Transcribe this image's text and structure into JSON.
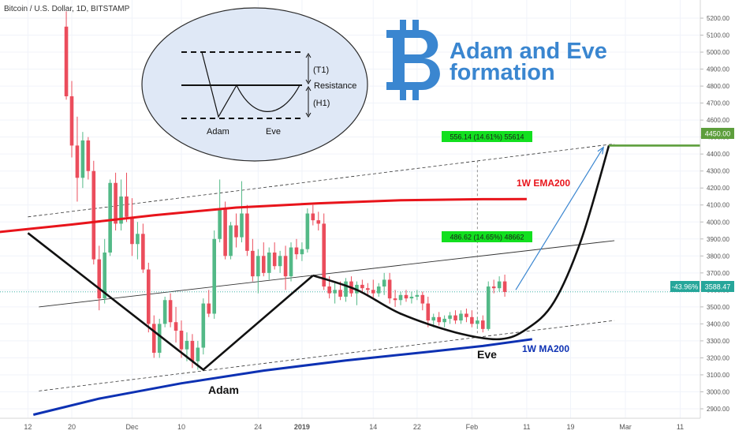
{
  "header": {
    "symbol_title": "Bitcoin / U.S. Dollar, 1D, BITSTAMP"
  },
  "overlay": {
    "title_line1": "Adam and Eve",
    "title_line2": "formation",
    "bitcoin_logo_glyph": "bitcoin-icon",
    "accent_color": "#3a86d0"
  },
  "inset": {
    "t1_label": "(T1)",
    "resistance_label": "Resistance",
    "h1_label": "(H1)",
    "adam_label": "Adam",
    "eve_label": "Eve",
    "fill_color": "#dfe8f6"
  },
  "annotations": {
    "adam_label": "Adam",
    "eve_label": "Eve",
    "ema_label": "1W EMA200",
    "ma_label": "1W MA200",
    "ema_color": "#e8141b",
    "ma_color": "#0d31b3",
    "measure_top": "556.14 (14.61%) 55614",
    "measure_mid": "486.62 (14.65%) 48662",
    "measure_color": "#12e01f"
  },
  "price_axis": {
    "last_change": "-43.96%",
    "last_price": "3588.47",
    "target_price": "4450.00",
    "target_color": "#5d9e3c"
  },
  "chart_data": {
    "type": "candlestick",
    "title": "Bitcoin / U.S. Dollar, 1D, BITSTAMP",
    "y_ticks": [
      2900,
      3000,
      3100,
      3200,
      3300,
      3400,
      3500,
      3600,
      3700,
      3800,
      3900,
      4000,
      4100,
      4200,
      4300,
      4400,
      4500,
      4600,
      4700,
      4800,
      4900,
      5000,
      5100,
      5200
    ],
    "y_tick_labels": [
      "2900.00",
      "3000.00",
      "3100.00",
      "3200.00",
      "3300.00",
      "3400.00",
      "3500.00",
      "3600.00",
      "3700.00",
      "3800.00",
      "3900.00",
      "4000.00",
      "4100.00",
      "4200.00",
      "4300.00",
      "4400.00",
      "4500.00",
      "4600.00",
      "4700.00",
      "4800.00",
      "4900.00",
      "5000.00",
      "5100.00",
      "5200.00"
    ],
    "ylim": [
      2860,
      5240
    ],
    "x_ticks": [
      {
        "day": 12,
        "label": "12"
      },
      {
        "day": 20,
        "label": "20"
      },
      {
        "day": 31,
        "label": "Dec"
      },
      {
        "day": 40,
        "label": "10"
      },
      {
        "day": 54,
        "label": "24"
      },
      {
        "day": 62,
        "label": "2019"
      },
      {
        "day": 75,
        "label": "14"
      },
      {
        "day": 83,
        "label": "22"
      },
      {
        "day": 93,
        "label": "Feb"
      },
      {
        "day": 103,
        "label": "11"
      },
      {
        "day": 111,
        "label": "19"
      },
      {
        "day": 121,
        "label": "Mar"
      },
      {
        "day": 131,
        "label": "11"
      }
    ],
    "xlim": [
      5,
      139
    ],
    "candles": [
      {
        "x": 19,
        "o": 5150,
        "h": 5240,
        "l": 4720,
        "c": 4740
      },
      {
        "x": 20,
        "o": 4740,
        "h": 4830,
        "l": 4380,
        "c": 4450
      },
      {
        "x": 21,
        "o": 4450,
        "h": 4620,
        "l": 4120,
        "c": 4260
      },
      {
        "x": 22,
        "o": 4260,
        "h": 4530,
        "l": 4200,
        "c": 4480
      },
      {
        "x": 23,
        "o": 4480,
        "h": 4500,
        "l": 4250,
        "c": 4300
      },
      {
        "x": 24,
        "o": 4300,
        "h": 4360,
        "l": 3750,
        "c": 3780
      },
      {
        "x": 25,
        "o": 3780,
        "h": 3860,
        "l": 3480,
        "c": 3550
      },
      {
        "x": 26,
        "o": 3550,
        "h": 3900,
        "l": 3520,
        "c": 3820
      },
      {
        "x": 27,
        "o": 3820,
        "h": 4250,
        "l": 3800,
        "c": 4230
      },
      {
        "x": 28,
        "o": 4230,
        "h": 4290,
        "l": 3950,
        "c": 3990
      },
      {
        "x": 29,
        "o": 3990,
        "h": 4250,
        "l": 3950,
        "c": 4150
      },
      {
        "x": 30,
        "o": 4150,
        "h": 4290,
        "l": 4000,
        "c": 4030
      },
      {
        "x": 31,
        "o": 4030,
        "h": 4140,
        "l": 3800,
        "c": 3870
      },
      {
        "x": 32,
        "o": 3870,
        "h": 4000,
        "l": 3780,
        "c": 3930
      },
      {
        "x": 33,
        "o": 3930,
        "h": 3990,
        "l": 3700,
        "c": 3720
      },
      {
        "x": 34,
        "o": 3720,
        "h": 3760,
        "l": 3350,
        "c": 3400
      },
      {
        "x": 35,
        "o": 3400,
        "h": 3450,
        "l": 3200,
        "c": 3230
      },
      {
        "x": 36,
        "o": 3230,
        "h": 3430,
        "l": 3200,
        "c": 3400
      },
      {
        "x": 37,
        "o": 3400,
        "h": 3560,
        "l": 3380,
        "c": 3540
      },
      {
        "x": 38,
        "o": 3540,
        "h": 3580,
        "l": 3380,
        "c": 3410
      },
      {
        "x": 39,
        "o": 3410,
        "h": 3500,
        "l": 3290,
        "c": 3360
      },
      {
        "x": 40,
        "o": 3360,
        "h": 3420,
        "l": 3200,
        "c": 3250
      },
      {
        "x": 41,
        "o": 3250,
        "h": 3350,
        "l": 3180,
        "c": 3300
      },
      {
        "x": 42,
        "o": 3300,
        "h": 3340,
        "l": 3140,
        "c": 3180
      },
      {
        "x": 43,
        "o": 3180,
        "h": 3300,
        "l": 3130,
        "c": 3260
      },
      {
        "x": 44,
        "o": 3260,
        "h": 3550,
        "l": 3220,
        "c": 3520
      },
      {
        "x": 45,
        "o": 3520,
        "h": 3600,
        "l": 3440,
        "c": 3460
      },
      {
        "x": 46,
        "o": 3460,
        "h": 3950,
        "l": 3430,
        "c": 3900
      },
      {
        "x": 47,
        "o": 3900,
        "h": 4250,
        "l": 3880,
        "c": 4080
      },
      {
        "x": 48,
        "o": 4080,
        "h": 4120,
        "l": 3780,
        "c": 3800
      },
      {
        "x": 49,
        "o": 3800,
        "h": 4000,
        "l": 3780,
        "c": 3980
      },
      {
        "x": 50,
        "o": 3980,
        "h": 4050,
        "l": 3850,
        "c": 3910
      },
      {
        "x": 51,
        "o": 3910,
        "h": 4240,
        "l": 3880,
        "c": 4050
      },
      {
        "x": 52,
        "o": 4050,
        "h": 4100,
        "l": 3800,
        "c": 3830
      },
      {
        "x": 53,
        "o": 3830,
        "h": 3900,
        "l": 3650,
        "c": 3680
      },
      {
        "x": 54,
        "o": 3680,
        "h": 3840,
        "l": 3580,
        "c": 3800
      },
      {
        "x": 55,
        "o": 3800,
        "h": 3880,
        "l": 3680,
        "c": 3700
      },
      {
        "x": 56,
        "o": 3700,
        "h": 3850,
        "l": 3660,
        "c": 3820
      },
      {
        "x": 57,
        "o": 3820,
        "h": 3880,
        "l": 3720,
        "c": 3740
      },
      {
        "x": 58,
        "o": 3740,
        "h": 3830,
        "l": 3700,
        "c": 3800
      },
      {
        "x": 59,
        "o": 3800,
        "h": 3860,
        "l": 3600,
        "c": 3680
      },
      {
        "x": 60,
        "o": 3680,
        "h": 3880,
        "l": 3650,
        "c": 3850
      },
      {
        "x": 61,
        "o": 3850,
        "h": 3900,
        "l": 3780,
        "c": 3810
      },
      {
        "x": 62,
        "o": 3810,
        "h": 3880,
        "l": 3770,
        "c": 3840
      },
      {
        "x": 63,
        "o": 3840,
        "h": 4080,
        "l": 3820,
        "c": 4050
      },
      {
        "x": 64,
        "o": 4050,
        "h": 4100,
        "l": 3980,
        "c": 4010
      },
      {
        "x": 65,
        "o": 4010,
        "h": 4060,
        "l": 3950,
        "c": 3990
      },
      {
        "x": 66,
        "o": 3990,
        "h": 4050,
        "l": 3600,
        "c": 3620
      },
      {
        "x": 67,
        "o": 3620,
        "h": 3680,
        "l": 3550,
        "c": 3580
      },
      {
        "x": 68,
        "o": 3580,
        "h": 3640,
        "l": 3520,
        "c": 3600
      },
      {
        "x": 69,
        "o": 3600,
        "h": 3650,
        "l": 3540,
        "c": 3560
      },
      {
        "x": 70,
        "o": 3560,
        "h": 3670,
        "l": 3530,
        "c": 3650
      },
      {
        "x": 71,
        "o": 3650,
        "h": 3680,
        "l": 3560,
        "c": 3580
      },
      {
        "x": 72,
        "o": 3580,
        "h": 3650,
        "l": 3510,
        "c": 3630
      },
      {
        "x": 73,
        "o": 3630,
        "h": 3660,
        "l": 3590,
        "c": 3610
      },
      {
        "x": 74,
        "o": 3610,
        "h": 3640,
        "l": 3560,
        "c": 3600
      },
      {
        "x": 75,
        "o": 3600,
        "h": 3660,
        "l": 3550,
        "c": 3580
      },
      {
        "x": 76,
        "o": 3580,
        "h": 3640,
        "l": 3560,
        "c": 3620
      },
      {
        "x": 77,
        "o": 3620,
        "h": 3700,
        "l": 3570,
        "c": 3660
      },
      {
        "x": 78,
        "o": 3660,
        "h": 3700,
        "l": 3520,
        "c": 3550
      },
      {
        "x": 79,
        "o": 3550,
        "h": 3600,
        "l": 3500,
        "c": 3540
      },
      {
        "x": 80,
        "o": 3540,
        "h": 3590,
        "l": 3510,
        "c": 3570
      },
      {
        "x": 81,
        "o": 3570,
        "h": 3600,
        "l": 3530,
        "c": 3550
      },
      {
        "x": 82,
        "o": 3550,
        "h": 3590,
        "l": 3520,
        "c": 3560
      },
      {
        "x": 83,
        "o": 3560,
        "h": 3600,
        "l": 3540,
        "c": 3570
      },
      {
        "x": 84,
        "o": 3570,
        "h": 3590,
        "l": 3480,
        "c": 3520
      },
      {
        "x": 85,
        "o": 3520,
        "h": 3560,
        "l": 3380,
        "c": 3420
      },
      {
        "x": 86,
        "o": 3420,
        "h": 3460,
        "l": 3380,
        "c": 3440
      },
      {
        "x": 87,
        "o": 3440,
        "h": 3470,
        "l": 3390,
        "c": 3410
      },
      {
        "x": 88,
        "o": 3410,
        "h": 3450,
        "l": 3380,
        "c": 3430
      },
      {
        "x": 89,
        "o": 3430,
        "h": 3470,
        "l": 3400,
        "c": 3450
      },
      {
        "x": 90,
        "o": 3450,
        "h": 3480,
        "l": 3400,
        "c": 3420
      },
      {
        "x": 91,
        "o": 3420,
        "h": 3480,
        "l": 3400,
        "c": 3460
      },
      {
        "x": 92,
        "o": 3460,
        "h": 3490,
        "l": 3410,
        "c": 3440
      },
      {
        "x": 93,
        "o": 3440,
        "h": 3480,
        "l": 3380,
        "c": 3400
      },
      {
        "x": 94,
        "o": 3400,
        "h": 3440,
        "l": 3370,
        "c": 3420
      },
      {
        "x": 95,
        "o": 3420,
        "h": 3450,
        "l": 3350,
        "c": 3370
      },
      {
        "x": 96,
        "o": 3370,
        "h": 3650,
        "l": 3360,
        "c": 3620
      },
      {
        "x": 97,
        "o": 3620,
        "h": 3660,
        "l": 3580,
        "c": 3610
      },
      {
        "x": 98,
        "o": 3610,
        "h": 3680,
        "l": 3590,
        "c": 3650
      },
      {
        "x": 99,
        "o": 3650,
        "h": 3690,
        "l": 3560,
        "c": 3588
      }
    ],
    "series": [
      {
        "name": "1W EMA200",
        "color": "#e8141b",
        "points": [
          [
            5,
            3935
          ],
          [
            20,
            3985
          ],
          [
            35,
            4040
          ],
          [
            50,
            4085
          ],
          [
            65,
            4110
          ],
          [
            80,
            4128
          ],
          [
            95,
            4134
          ],
          [
            103,
            4135
          ]
        ]
      },
      {
        "name": "1W MA200",
        "color": "#0d31b3",
        "points": [
          [
            13,
            2865
          ],
          [
            25,
            2960
          ],
          [
            40,
            3050
          ],
          [
            55,
            3125
          ],
          [
            70,
            3185
          ],
          [
            85,
            3235
          ],
          [
            95,
            3270
          ],
          [
            104,
            3310
          ]
        ]
      }
    ],
    "pattern_lines": {
      "adam": [
        [
          12,
          3935
        ],
        [
          44,
          3130
        ],
        [
          64,
          3685
        ]
      ],
      "eve": [
        [
          64,
          3685
        ],
        [
          72,
          3600
        ],
        [
          80,
          3460
        ],
        [
          90,
          3350
        ],
        [
          98,
          3310
        ],
        [
          103,
          3370
        ],
        [
          108,
          3530
        ],
        [
          113,
          3900
        ],
        [
          118,
          4450
        ]
      ],
      "target": [
        [
          118,
          4450
        ],
        [
          139,
          4450
        ]
      ],
      "resistance_mid": [
        [
          14,
          3500
        ],
        [
          119,
          3890
        ]
      ],
      "channel_top_dashed": [
        [
          12,
          4030
        ],
        [
          119,
          4460
        ]
      ],
      "channel_bottom_dashed": [
        [
          14,
          3005
        ],
        [
          119,
          3420
        ]
      ],
      "forecast_arrow": [
        [
          101,
          3600
        ],
        [
          117,
          4440
        ]
      ],
      "measure_vertical": [
        [
          94,
          3345
        ],
        [
          94,
          4370
        ]
      ]
    }
  }
}
